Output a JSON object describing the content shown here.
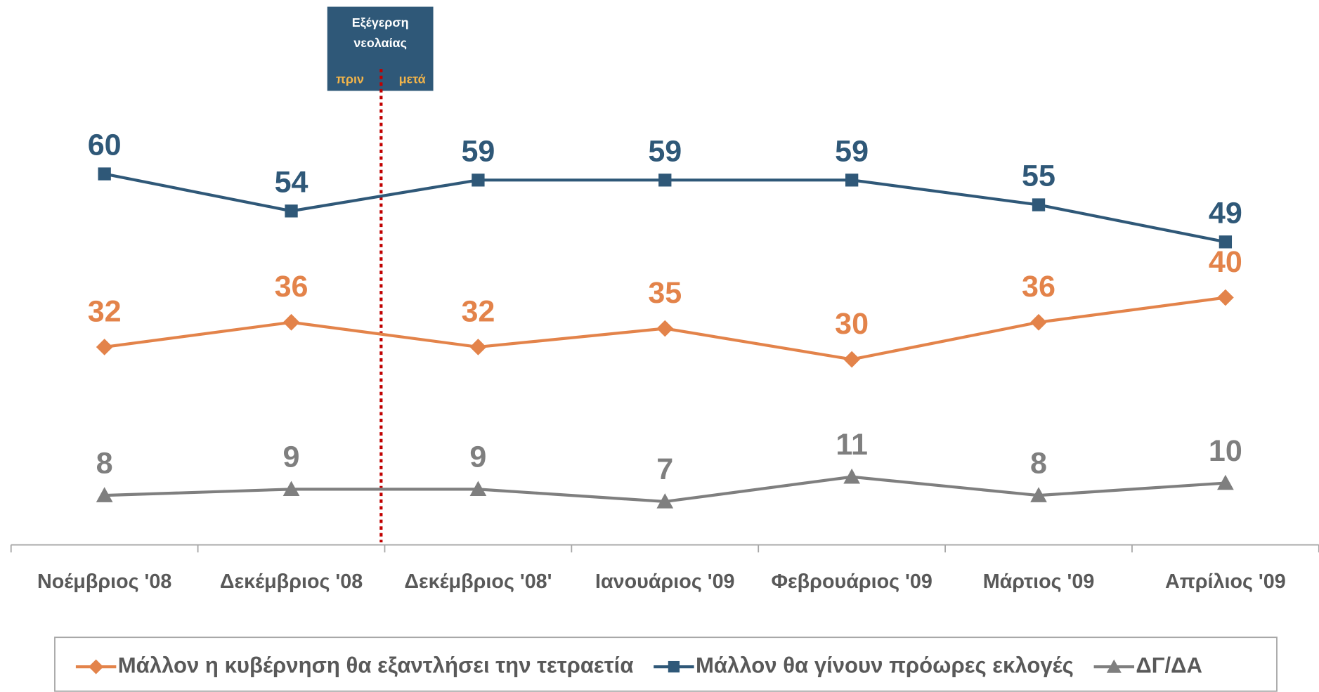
{
  "chart_data": {
    "type": "line",
    "categories": [
      "Νοέμβριος '08",
      "Δεκέμβριος '08",
      "Δεκέμβριος '08'",
      "Ιανουάριος '09",
      "Φεβρουάριος '09",
      "Μάρτιος '09",
      "Απρίλιος '09"
    ],
    "series": [
      {
        "name": "Μάλλον η κυβέρνηση θα εξαντλήσει την τετραετία",
        "color": "#e3834a",
        "marker": "diamond",
        "values": [
          32,
          36,
          32,
          35,
          30,
          36,
          40
        ]
      },
      {
        "name": "Μάλλον θα γίνουν πρόωρες εκλογές",
        "color": "#2f5878",
        "marker": "square",
        "values": [
          60,
          54,
          59,
          59,
          59,
          55,
          49
        ]
      },
      {
        "name": "ΔΓ/ΔΑ",
        "color": "#7f7f7f",
        "marker": "triangle",
        "values": [
          8,
          9,
          9,
          7,
          11,
          8,
          10
        ]
      }
    ],
    "ylim": [
      0,
      85
    ],
    "legend": "bottom",
    "annotation": {
      "title": [
        "Εξέγερση",
        "νεολαίας"
      ],
      "before": "πριν",
      "after": "μετά"
    }
  }
}
